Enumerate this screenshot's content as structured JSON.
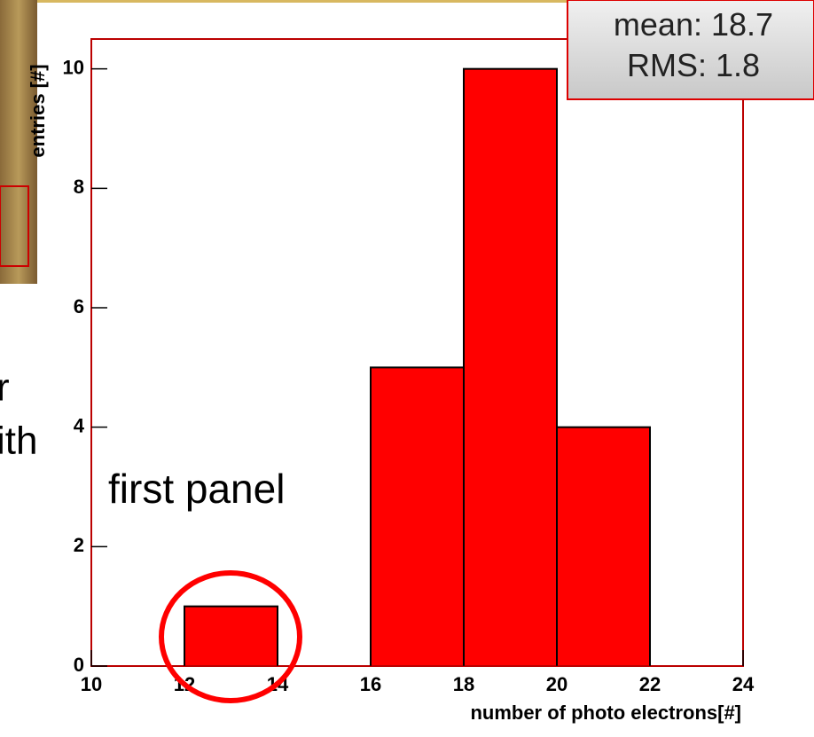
{
  "chart_data": {
    "type": "histogram",
    "ylabel": "entries [#]",
    "xlabel": "number of photo electrons[#]",
    "bins": [
      10,
      12,
      14,
      16,
      18,
      20,
      22,
      24
    ],
    "counts": [
      0,
      1,
      0,
      5,
      10,
      4,
      0
    ],
    "color": "#ff0000",
    "xlim": [
      10,
      24
    ],
    "xticks": [
      10,
      12,
      14,
      16,
      18,
      20,
      22,
      24
    ],
    "ylim": [
      0,
      10.5
    ],
    "yticks": [
      0,
      2,
      4,
      6,
      8,
      10
    ],
    "stats": [
      {
        "label": "mean:",
        "value": 18.7
      },
      {
        "label": "RMS:",
        "value": 1.8
      }
    ],
    "annotations": [
      "first panel"
    ],
    "fragments": [
      "r",
      "ith"
    ]
  }
}
